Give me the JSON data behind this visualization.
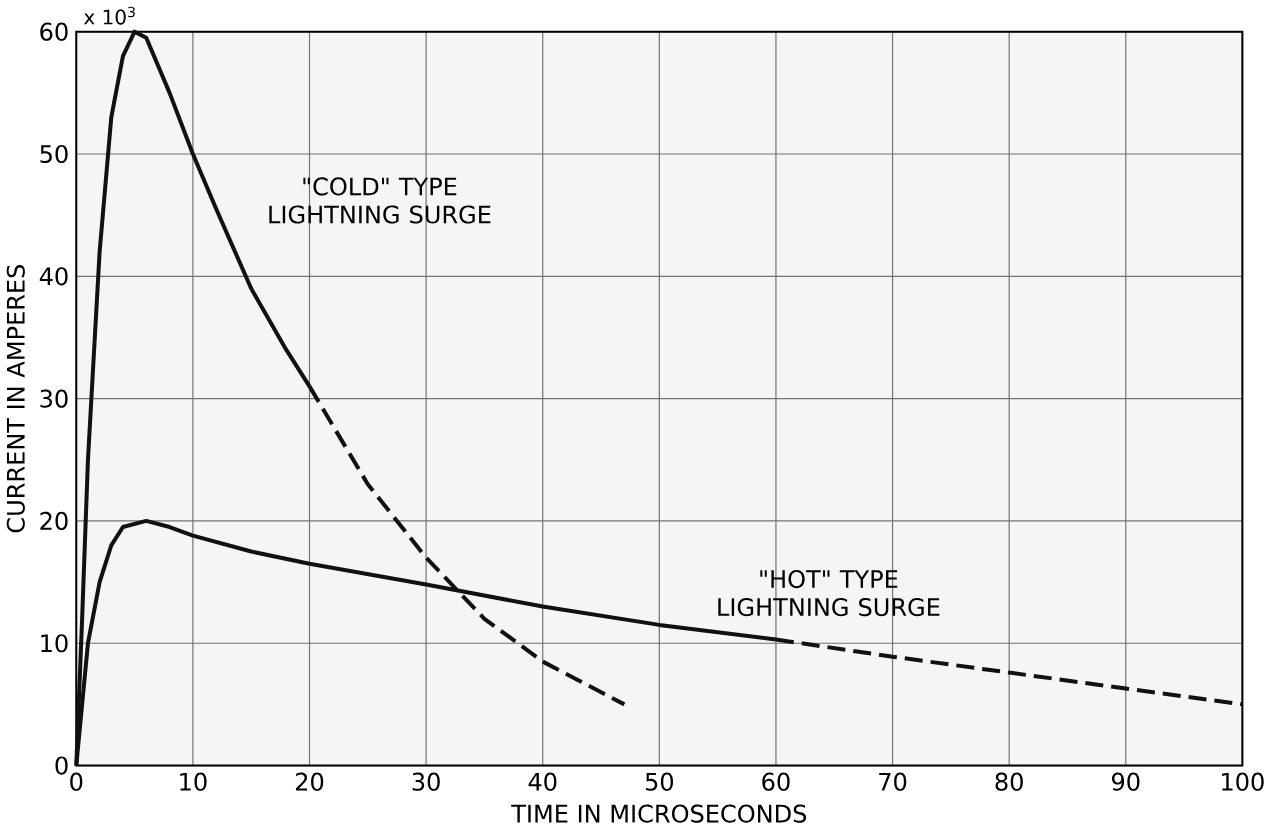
{
  "chart_data": {
    "type": "line",
    "xlabel": "TIME IN MICROSECONDS",
    "ylabel": "CURRENT IN AMPERES",
    "xlim": [
      0,
      100
    ],
    "ylim": [
      0,
      60
    ],
    "xticks": [
      0,
      10,
      20,
      30,
      40,
      50,
      60,
      70,
      80,
      90,
      100
    ],
    "yticks": [
      0,
      10,
      20,
      30,
      40,
      50,
      60
    ],
    "grid": true,
    "marker": "none",
    "series": [
      {
        "color": "#111111",
        "line_style": "solid",
        "x": [
          0,
          0.5,
          1,
          2,
          3,
          4,
          5,
          6,
          8,
          10,
          12,
          15,
          18,
          20
        ],
        "values": [
          0,
          12,
          25,
          42,
          53,
          58,
          60,
          59.5,
          55,
          50,
          45.5,
          39,
          34,
          31
        ]
      },
      {
        "color": "#111111",
        "line_style": "dashed",
        "x": [
          20,
          25,
          30,
          33,
          35,
          40,
          43,
          47
        ],
        "values": [
          31,
          23,
          17,
          14,
          12,
          8.5,
          7,
          5
        ]
      },
      {
        "color": "#111111",
        "line_style": "solid",
        "x": [
          0,
          0.5,
          1,
          2,
          3,
          4,
          6,
          8,
          10,
          15,
          20,
          30,
          40,
          50,
          60
        ],
        "values": [
          0,
          5,
          10,
          15,
          18,
          19.5,
          20,
          19.5,
          18.8,
          17.5,
          16.5,
          14.8,
          13,
          11.5,
          10.3
        ]
      },
      {
        "color": "#111111",
        "line_style": "dashed",
        "x": [
          60,
          70,
          80,
          90,
          100
        ],
        "values": [
          10.3,
          8.9,
          7.6,
          6.3,
          5
        ]
      }
    ],
    "annotations": [
      "x 10$^{3}$",
      "\"COLD\" TYPE LIGHTNING SURGE",
      "\"HOT\" TYPE LIGHTNING SURGE"
    ]
  }
}
